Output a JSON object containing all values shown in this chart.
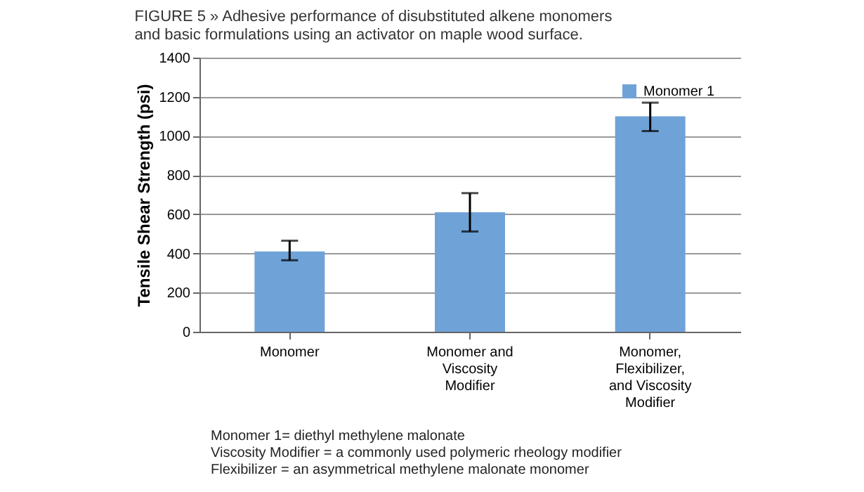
{
  "chart_data": {
    "type": "bar",
    "title": [
      "FIGURE 5 » Adhesive performance of disubstituted alkene monomers",
      "and basic formulations using an activator on maple wood surface."
    ],
    "ylabel": "Tensile Shear Strength (psi)",
    "categories": [
      "Monomer",
      "Monomer and Viscosity Modifier",
      "Monomer, Flexibilizer, and Viscosity Modifier"
    ],
    "series": [
      {
        "name": "Monomer 1",
        "color": "#6fa3d8",
        "values": [
          410,
          610,
          1100
        ],
        "errors": [
          [
            365,
            465
          ],
          [
            512,
            708
          ],
          [
            1025,
            1170
          ]
        ]
      }
    ],
    "ylim": [
      0,
      1400
    ],
    "yticks": [
      0,
      200,
      400,
      600,
      800,
      1000,
      1200,
      1400
    ],
    "grid": "y",
    "legend": "top right",
    "annotations": [
      "Monomer 1= diethyl methylene malonate",
      "Viscosity Modifier = a commonly used polymeric rheology modifier",
      "Flexibilizer = an asymmetrical methylene malonate monomer"
    ]
  }
}
